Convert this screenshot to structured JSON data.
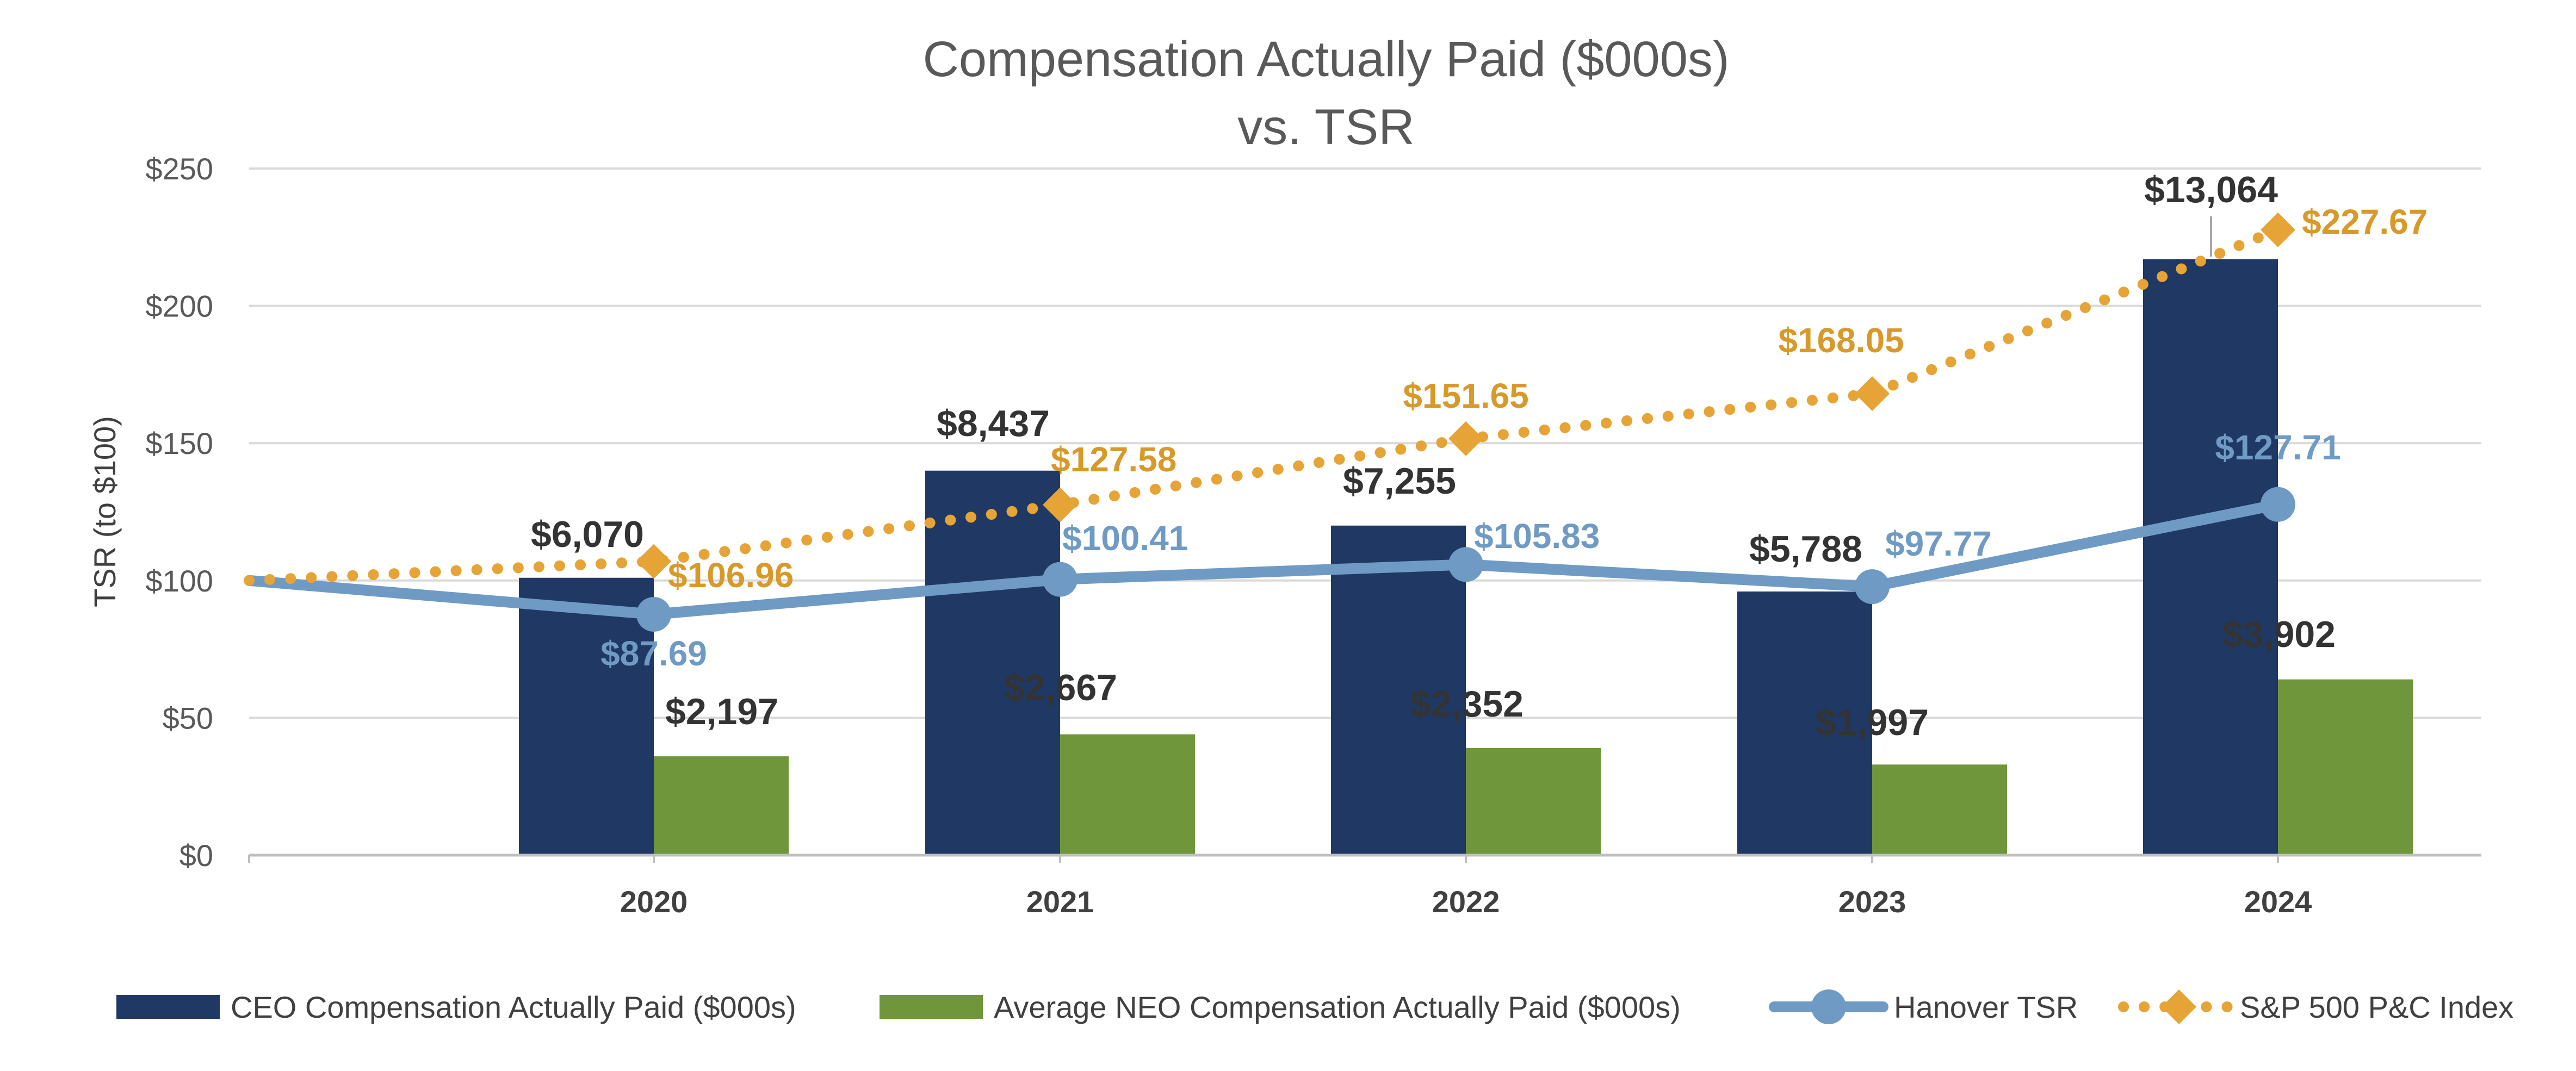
{
  "chart_data": {
    "type": "bar",
    "title": "Compensation Actually Paid ($000s)",
    "subtitle": "vs. TSR",
    "xlabel": "",
    "ylabel": "TSR (to $100)",
    "ylim": [
      0,
      250
    ],
    "yticks": [
      0,
      50,
      100,
      150,
      200,
      250
    ],
    "ytick_labels": [
      "$0",
      "$50",
      "$100",
      "$150",
      "$200",
      "$250"
    ],
    "grid": true,
    "legend_position": "bottom",
    "categories": [
      "2020",
      "2021",
      "2022",
      "2023",
      "2024"
    ],
    "line_start": {
      "label": "",
      "value": 100
    },
    "series": [
      {
        "name": "CEO Compensation Actually Paid ($000s)",
        "kind": "bar",
        "color": "#1f3864",
        "values": [
          6070,
          8437,
          7255,
          5788,
          13064
        ],
        "axis_values": [
          101,
          140,
          120,
          96,
          217
        ],
        "labels": [
          "$6,070",
          "$8,437",
          "$7,255",
          "$5,788",
          "$13,064"
        ]
      },
      {
        "name": "Average NEO Compensation Actually Paid ($000s)",
        "kind": "bar",
        "color": "#70963c",
        "values": [
          2197,
          2667,
          2352,
          1997,
          3902
        ],
        "axis_values": [
          36,
          44,
          39,
          33,
          64
        ],
        "labels": [
          "$2,197",
          "$2,667",
          "$2,352",
          "$1,997",
          "$3,902"
        ]
      },
      {
        "name": "Hanover TSR",
        "kind": "line",
        "color": "#6f9ac4",
        "values": [
          87.69,
          100.41,
          105.83,
          97.77,
          127.71
        ],
        "labels": [
          "$87.69",
          "$100.41",
          "$105.83",
          "$97.77",
          "$127.71"
        ]
      },
      {
        "name": "S&P 500 P&C Index",
        "kind": "dotted-line",
        "color": "#e5a435",
        "values": [
          106.96,
          127.58,
          151.65,
          168.05,
          227.67
        ],
        "labels": [
          "$106.96",
          "$127.58",
          "$151.65",
          "$168.05",
          "$227.67"
        ]
      }
    ]
  },
  "colors": {
    "background": "#ffffff",
    "grid": "#d9d9d9",
    "axis": "#bfbfbf",
    "text": "#595959"
  }
}
